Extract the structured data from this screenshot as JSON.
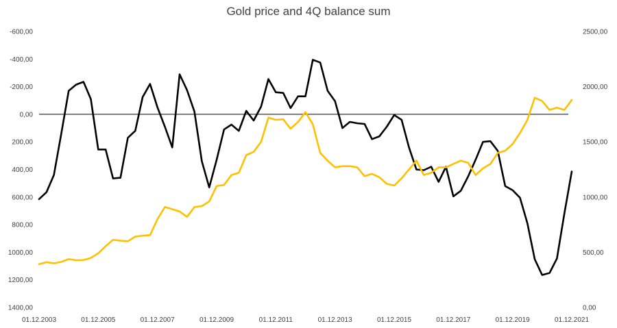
{
  "chart_data": {
    "type": "line",
    "title": "Gold price and 4Q balance sum",
    "x_ticks": [
      "01.12.2003",
      "01.12.2005",
      "01.12.2007",
      "01.12.2009",
      "01.12.2011",
      "01.12.2013",
      "01.12.2015",
      "01.12.2017",
      "01.12.2019",
      "01.12.2021"
    ],
    "y_left_ticks": [
      "-600,00",
      "-400,00",
      "-200,00",
      "0,00",
      "200,00",
      "400,00",
      "600,00",
      "800,00",
      "1000,00",
      "1200,00",
      "1400,00"
    ],
    "y_left_range": [
      -600,
      1400
    ],
    "y_left_inverted": true,
    "y_right_ticks": [
      "2500,00",
      "2000,00",
      "1500,00",
      "1000,00",
      "500,00",
      "0,00"
    ],
    "y_right_range": [
      0,
      2500
    ],
    "colors": {
      "balance": "#000000",
      "gold": "#FFC000",
      "zero_line": "#000000"
    },
    "series": [
      {
        "axis": "left",
        "color": "#000000",
        "x": [
          "2003-12",
          "2004-03",
          "2004-06",
          "2004-09",
          "2004-12",
          "2005-03",
          "2005-06",
          "2005-09",
          "2005-12",
          "2006-03",
          "2006-06",
          "2006-09",
          "2006-12",
          "2007-03",
          "2007-06",
          "2007-09",
          "2007-12",
          "2008-03",
          "2008-06",
          "2008-09",
          "2008-12",
          "2009-03",
          "2009-06",
          "2009-09",
          "2009-12",
          "2010-03",
          "2010-06",
          "2010-09",
          "2010-12",
          "2011-03",
          "2011-06",
          "2011-09",
          "2011-12",
          "2012-03",
          "2012-06",
          "2012-09",
          "2012-12",
          "2013-03",
          "2013-06",
          "2013-09",
          "2013-12",
          "2014-03",
          "2014-06",
          "2014-09",
          "2014-12",
          "2015-03",
          "2015-06",
          "2015-09",
          "2015-12",
          "2016-03",
          "2016-06",
          "2016-09",
          "2016-12",
          "2017-03",
          "2017-06",
          "2017-09",
          "2017-12",
          "2018-03",
          "2018-06",
          "2018-09",
          "2018-12",
          "2019-03",
          "2019-06",
          "2019-09",
          "2019-12",
          "2020-03",
          "2020-06",
          "2020-09",
          "2020-12",
          "2021-03",
          "2021-06",
          "2021-09",
          "2021-12"
        ],
        "values": [
          615,
          565,
          440,
          140,
          -170,
          -215,
          -235,
          -110,
          255,
          255,
          465,
          460,
          170,
          120,
          -125,
          -220,
          -50,
          90,
          240,
          -290,
          -175,
          -20,
          340,
          530,
          330,
          110,
          75,
          120,
          -25,
          45,
          -55,
          -255,
          -160,
          -155,
          -45,
          -130,
          -130,
          -395,
          -375,
          -170,
          -95,
          100,
          55,
          65,
          70,
          180,
          160,
          90,
          5,
          40,
          240,
          400,
          405,
          380,
          490,
          380,
          595,
          555,
          450,
          330,
          200,
          195,
          265,
          520,
          550,
          605,
          790,
          1050,
          1165,
          1150,
          1045,
          720,
          415
        ]
      },
      {
        "axis": "right",
        "color": "#FFC000",
        "x": [
          "2003-12",
          "2004-03",
          "2004-06",
          "2004-09",
          "2004-12",
          "2005-03",
          "2005-06",
          "2005-09",
          "2005-12",
          "2006-03",
          "2006-06",
          "2006-09",
          "2006-12",
          "2007-03",
          "2007-06",
          "2007-09",
          "2007-12",
          "2008-03",
          "2008-06",
          "2008-09",
          "2008-12",
          "2009-03",
          "2009-06",
          "2009-09",
          "2009-12",
          "2010-03",
          "2010-06",
          "2010-09",
          "2010-12",
          "2011-03",
          "2011-06",
          "2011-09",
          "2011-12",
          "2012-03",
          "2012-06",
          "2012-09",
          "2012-12",
          "2013-03",
          "2013-06",
          "2013-09",
          "2013-12",
          "2014-03",
          "2014-06",
          "2014-09",
          "2014-12",
          "2015-03",
          "2015-06",
          "2015-09",
          "2015-12",
          "2016-03",
          "2016-06",
          "2016-09",
          "2016-12",
          "2017-03",
          "2017-06",
          "2017-09",
          "2017-12",
          "2018-03",
          "2018-06",
          "2018-09",
          "2018-12",
          "2019-03",
          "2019-06",
          "2019-09",
          "2019-12",
          "2020-03",
          "2020-06",
          "2020-09",
          "2020-12",
          "2021-03",
          "2021-06",
          "2021-09",
          "2021-12"
        ],
        "values": [
          392,
          410,
          400,
          413,
          438,
          428,
          429,
          449,
          491,
          555,
          613,
          605,
          600,
          642,
          650,
          656,
          800,
          910,
          890,
          870,
          821,
          910,
          918,
          960,
          1100,
          1110,
          1200,
          1220,
          1380,
          1410,
          1500,
          1720,
          1700,
          1705,
          1620,
          1680,
          1770,
          1660,
          1400,
          1330,
          1270,
          1280,
          1280,
          1270,
          1190,
          1210,
          1180,
          1120,
          1105,
          1170,
          1250,
          1330,
          1200,
          1220,
          1270,
          1270,
          1300,
          1330,
          1310,
          1200,
          1260,
          1300,
          1400,
          1420,
          1480,
          1580,
          1700,
          1900,
          1870,
          1790,
          1810,
          1790,
          1880
        ]
      }
    ],
    "zero_line": 0,
    "grid": false,
    "legend": "none"
  }
}
